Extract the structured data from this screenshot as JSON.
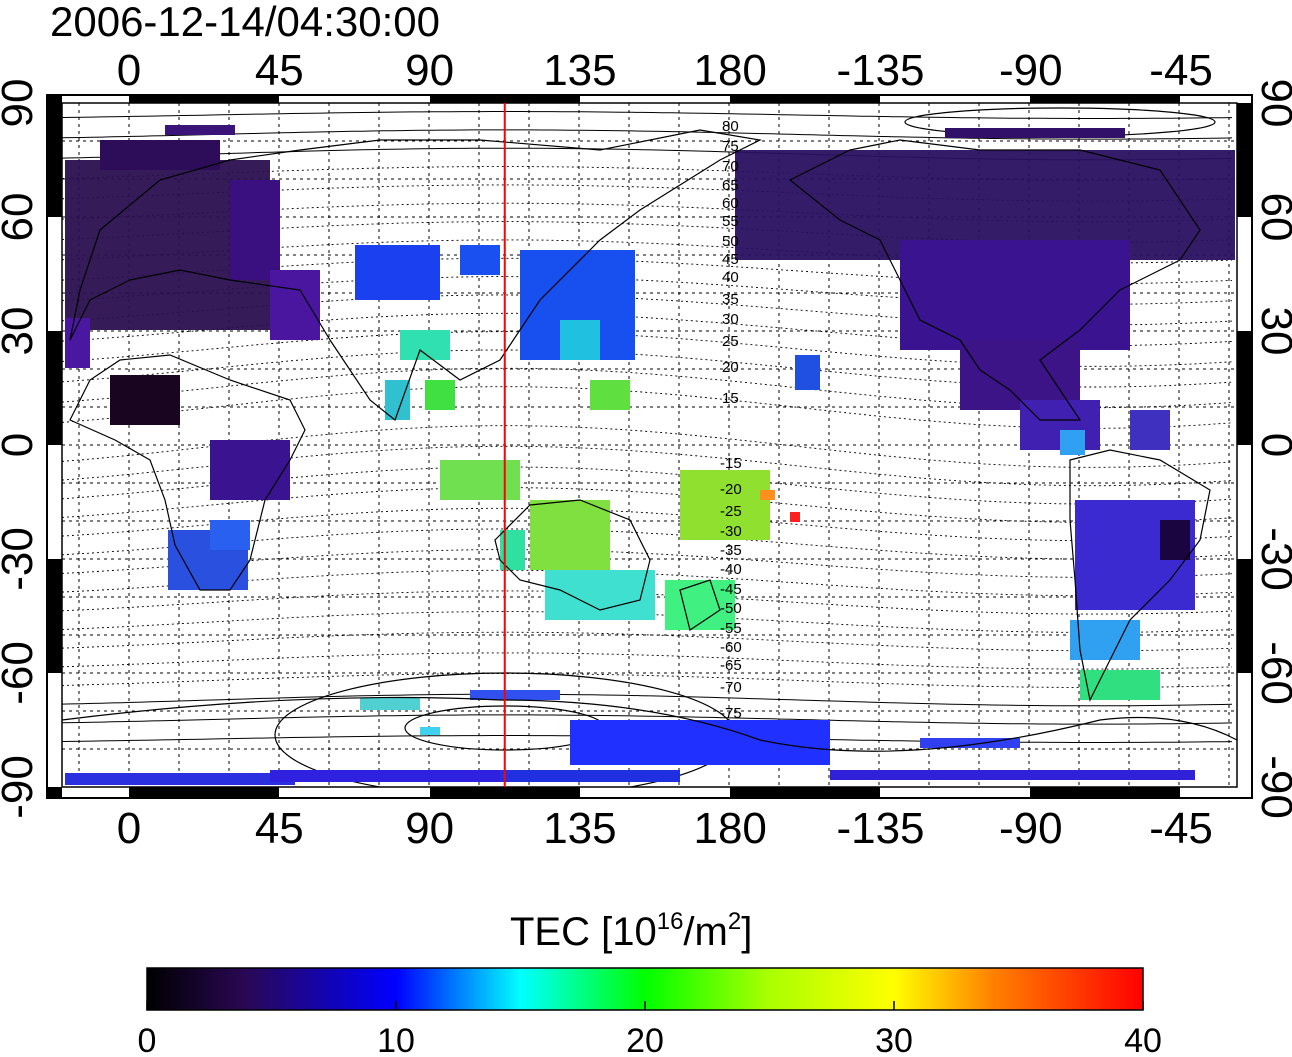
{
  "title": "2006-12-14/04:30:00",
  "top_lon_ticks": [
    "0",
    "45",
    "90",
    "135",
    "180",
    "-135",
    "-90",
    "-45"
  ],
  "bottom_lon_ticks": [
    "0",
    "45",
    "90",
    "135",
    "180",
    "-135",
    "-90",
    "-45"
  ],
  "left_lat_ticks": [
    "90",
    "60",
    "30",
    "0",
    "-30",
    "-60",
    "-90"
  ],
  "right_lat_ticks": [
    "90",
    "60",
    "30",
    "0",
    "-30",
    "-60",
    "-90"
  ],
  "contour_labels_north": [
    "80",
    "75",
    "70",
    "65",
    "60",
    "55",
    "50",
    "45",
    "40",
    "35",
    "30",
    "25",
    "20",
    "15"
  ],
  "contour_labels_south": [
    "-15",
    "-20",
    "-25",
    "-30",
    "-35",
    "-40",
    "-45",
    "-50",
    "-55",
    "-60",
    "-65",
    "-70",
    "-75"
  ],
  "colorbar": {
    "label_text": "TEC  [10",
    "label_exp": "16",
    "label_unit": "/m",
    "label_unit_exp": "2",
    "label_close": "]",
    "ticks": [
      "0",
      "10",
      "20",
      "30",
      "40"
    ],
    "min": 0,
    "max": 40,
    "stops": [
      "#000000",
      "#3a0a6e",
      "#0000ff",
      "#00ffff",
      "#00ff00",
      "#ffff00",
      "#ff8000",
      "#ff0000"
    ]
  },
  "colors": {
    "marker_line": "#ff0000",
    "frame": "#000000",
    "grid": "#000000"
  },
  "marker_longitude": 112.5
}
